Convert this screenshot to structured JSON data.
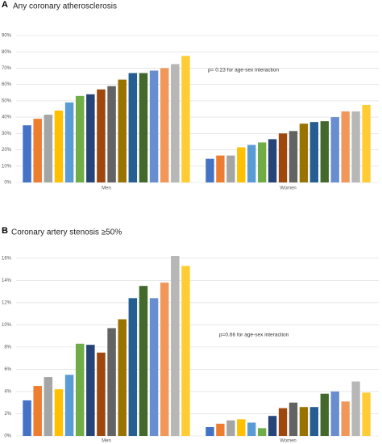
{
  "chart_data": [
    {
      "type": "bar",
      "panel": "A",
      "title": "Any coronary atherosclerosis",
      "annotation": "p= 0.23 for age-sex interaction",
      "categories": [
        "Men",
        "Women"
      ],
      "ylim": [
        0,
        90
      ],
      "yticks": [
        {
          "value": 0,
          "label": "0%"
        },
        {
          "value": 10,
          "label": "10%"
        },
        {
          "value": 20,
          "label": "20%"
        },
        {
          "value": 30,
          "label": "30%"
        },
        {
          "value": 40,
          "label": "40%"
        },
        {
          "value": 50,
          "label": "50%"
        },
        {
          "value": 60,
          "label": "60%"
        },
        {
          "value": 70,
          "label": "70%"
        },
        {
          "value": 80,
          "label": "80%"
        },
        {
          "value": 90,
          "label": "90%"
        }
      ],
      "grid": true,
      "series": [
        {
          "color": "#4472c4",
          "values": [
            35,
            14.5
          ]
        },
        {
          "color": "#ed7d31",
          "values": [
            39,
            16.5
          ]
        },
        {
          "color": "#a5a5a5",
          "values": [
            41.5,
            16.5
          ]
        },
        {
          "color": "#ffc000",
          "values": [
            44,
            21.5
          ]
        },
        {
          "color": "#5b9bd5",
          "values": [
            49,
            23
          ]
        },
        {
          "color": "#70ad47",
          "values": [
            53,
            24.5
          ]
        },
        {
          "color": "#264478",
          "values": [
            54,
            26.5
          ]
        },
        {
          "color": "#9e480e",
          "values": [
            57,
            30
          ]
        },
        {
          "color": "#636363",
          "values": [
            59,
            31.5
          ]
        },
        {
          "color": "#997300",
          "values": [
            63,
            36
          ]
        },
        {
          "color": "#255e91",
          "values": [
            67,
            37
          ]
        },
        {
          "color": "#43682b",
          "values": [
            67,
            37.5
          ]
        },
        {
          "color": "#698ed0",
          "values": [
            68.5,
            40
          ]
        },
        {
          "color": "#f1975a",
          "values": [
            70,
            43.5
          ]
        },
        {
          "color": "#b7b7b7",
          "values": [
            72.5,
            43.5
          ]
        },
        {
          "color": "#ffcd33",
          "values": [
            77.5,
            47.5
          ]
        }
      ]
    },
    {
      "type": "bar",
      "panel": "B",
      "title": "Coronary artery stenosis ≥50%",
      "annotation": "p=0.66 for age-sex interaction",
      "categories": [
        "Men",
        "Women"
      ],
      "ylim": [
        0,
        17
      ],
      "yticks": [
        {
          "value": 0,
          "label": "0%"
        },
        {
          "value": 2,
          "label": "2%"
        },
        {
          "value": 4,
          "label": "4%"
        },
        {
          "value": 6,
          "label": "6%"
        },
        {
          "value": 8,
          "label": "8%"
        },
        {
          "value": 10,
          "label": "10%"
        },
        {
          "value": 12,
          "label": "12%"
        },
        {
          "value": 14,
          "label": "14%"
        },
        {
          "value": 16,
          "label": "16%"
        }
      ],
      "grid": true,
      "series": [
        {
          "color": "#4472c4",
          "values": [
            3.2,
            0.8
          ]
        },
        {
          "color": "#ed7d31",
          "values": [
            4.5,
            1.1
          ]
        },
        {
          "color": "#a5a5a5",
          "values": [
            5.3,
            1.4
          ]
        },
        {
          "color": "#ffc000",
          "values": [
            4.2,
            1.5
          ]
        },
        {
          "color": "#5b9bd5",
          "values": [
            5.5,
            1.2
          ]
        },
        {
          "color": "#70ad47",
          "values": [
            8.3,
            0.7
          ]
        },
        {
          "color": "#264478",
          "values": [
            8.2,
            1.8
          ]
        },
        {
          "color": "#9e480e",
          "values": [
            7.5,
            2.5
          ]
        },
        {
          "color": "#636363",
          "values": [
            9.7,
            3.0
          ]
        },
        {
          "color": "#997300",
          "values": [
            10.5,
            2.6
          ]
        },
        {
          "color": "#255e91",
          "values": [
            12.4,
            2.6
          ]
        },
        {
          "color": "#43682b",
          "values": [
            13.5,
            3.8
          ]
        },
        {
          "color": "#698ed0",
          "values": [
            12.4,
            4.0
          ]
        },
        {
          "color": "#f1975a",
          "values": [
            13.8,
            3.1
          ]
        },
        {
          "color": "#b7b7b7",
          "values": [
            16.2,
            4.9
          ]
        },
        {
          "color": "#ffcd33",
          "values": [
            15.3,
            3.9
          ]
        }
      ]
    }
  ]
}
